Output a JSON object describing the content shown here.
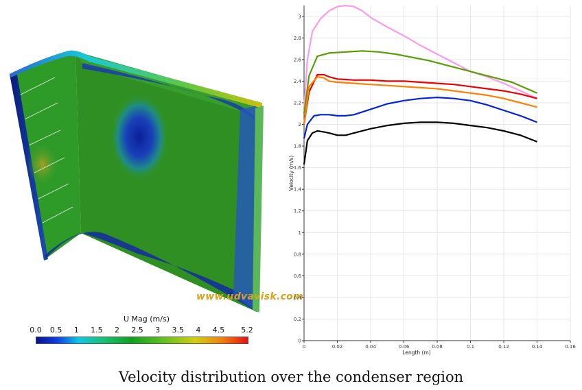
{
  "render": {
    "colorbar_title": "U Mag (m/s)",
    "colorbar_ticks": [
      "0.0",
      "0.5",
      "1",
      "1.5",
      "2",
      "2.5",
      "3",
      "3.5",
      "4",
      "4.5",
      "5.2"
    ],
    "colorbar_range": [
      0.0,
      5.2
    ],
    "watermark": "www.udvavisk.com"
  },
  "caption": "Velocity distribution over the condenser region",
  "chart_data": {
    "type": "line",
    "xlabel": "Length (m)",
    "ylabel": "Velocity (m/s)",
    "xlim": [
      0,
      0.16
    ],
    "ylim": [
      0,
      3.1
    ],
    "xticks": [
      0,
      0.02,
      0.04,
      0.06,
      0.08,
      0.1,
      0.12,
      0.14,
      0.16
    ],
    "xtick_labels": [
      "0",
      "0.02",
      "0.04",
      "0.06",
      "0.08",
      "0.1",
      "0.12",
      "0.14",
      "0.16"
    ],
    "yticks": [
      0,
      0.2,
      0.4,
      0.6,
      0.8,
      1,
      1.2,
      1.4,
      1.6,
      1.8,
      2,
      2.2,
      2.4,
      2.6,
      2.8,
      3
    ],
    "ytick_labels": [
      "0",
      "0.2",
      "0.4",
      "0.6",
      "0.8",
      "1",
      "1.2",
      "1.4",
      "1.6",
      "1.8",
      "2",
      "2.2",
      "2.4",
      "2.6",
      "2.8",
      "3"
    ],
    "grid": true,
    "legend": "none",
    "series": [
      {
        "color": "#ff99ee",
        "x": [
          0,
          0.002,
          0.005,
          0.01,
          0.015,
          0.02,
          0.025,
          0.03,
          0.035,
          0.04,
          0.05,
          0.06,
          0.07,
          0.08,
          0.09,
          0.1,
          0.11,
          0.12,
          0.13,
          0.14
        ],
        "y": [
          2.15,
          2.6,
          2.86,
          2.98,
          3.05,
          3.09,
          3.1,
          3.09,
          3.05,
          2.99,
          2.9,
          2.82,
          2.73,
          2.65,
          2.57,
          2.49,
          2.44,
          2.38,
          2.31,
          2.24
        ]
      },
      {
        "color": "#55a000",
        "x": [
          0,
          0.003,
          0.008,
          0.015,
          0.025,
          0.035,
          0.045,
          0.055,
          0.065,
          0.075,
          0.085,
          0.095,
          0.105,
          0.115,
          0.125,
          0.14
        ],
        "y": [
          2.1,
          2.45,
          2.63,
          2.66,
          2.67,
          2.68,
          2.67,
          2.65,
          2.62,
          2.59,
          2.55,
          2.51,
          2.47,
          2.43,
          2.39,
          2.29
        ]
      },
      {
        "color": "#ee0000",
        "x": [
          0,
          0.003,
          0.008,
          0.012,
          0.015,
          0.02,
          0.03,
          0.04,
          0.05,
          0.06,
          0.07,
          0.08,
          0.09,
          0.1,
          0.11,
          0.12,
          0.13,
          0.14
        ],
        "y": [
          2.0,
          2.3,
          2.46,
          2.46,
          2.44,
          2.42,
          2.41,
          2.41,
          2.4,
          2.4,
          2.39,
          2.38,
          2.37,
          2.35,
          2.33,
          2.31,
          2.28,
          2.24
        ]
      },
      {
        "color": "#ff8000",
        "x": [
          0,
          0.003,
          0.008,
          0.012,
          0.015,
          0.02,
          0.03,
          0.04,
          0.05,
          0.06,
          0.07,
          0.08,
          0.09,
          0.1,
          0.11,
          0.12,
          0.13,
          0.14
        ],
        "y": [
          2.0,
          2.35,
          2.44,
          2.43,
          2.4,
          2.39,
          2.38,
          2.37,
          2.36,
          2.35,
          2.34,
          2.33,
          2.31,
          2.29,
          2.27,
          2.24,
          2.2,
          2.16
        ]
      },
      {
        "color": "#0022dd",
        "x": [
          0,
          0.002,
          0.006,
          0.01,
          0.015,
          0.02,
          0.025,
          0.03,
          0.04,
          0.05,
          0.06,
          0.07,
          0.08,
          0.09,
          0.1,
          0.11,
          0.12,
          0.13,
          0.14
        ],
        "y": [
          1.87,
          2.0,
          2.08,
          2.09,
          2.09,
          2.08,
          2.08,
          2.09,
          2.14,
          2.19,
          2.22,
          2.24,
          2.25,
          2.24,
          2.22,
          2.18,
          2.13,
          2.08,
          2.02
        ]
      },
      {
        "color": "#000000",
        "x": [
          0,
          0.002,
          0.005,
          0.008,
          0.012,
          0.015,
          0.02,
          0.025,
          0.03,
          0.04,
          0.05,
          0.06,
          0.07,
          0.08,
          0.09,
          0.1,
          0.11,
          0.12,
          0.13,
          0.14
        ],
        "y": [
          1.63,
          1.85,
          1.92,
          1.94,
          1.93,
          1.92,
          1.9,
          1.9,
          1.92,
          1.96,
          1.99,
          2.01,
          2.02,
          2.02,
          2.01,
          1.99,
          1.97,
          1.94,
          1.9,
          1.84
        ]
      }
    ]
  }
}
